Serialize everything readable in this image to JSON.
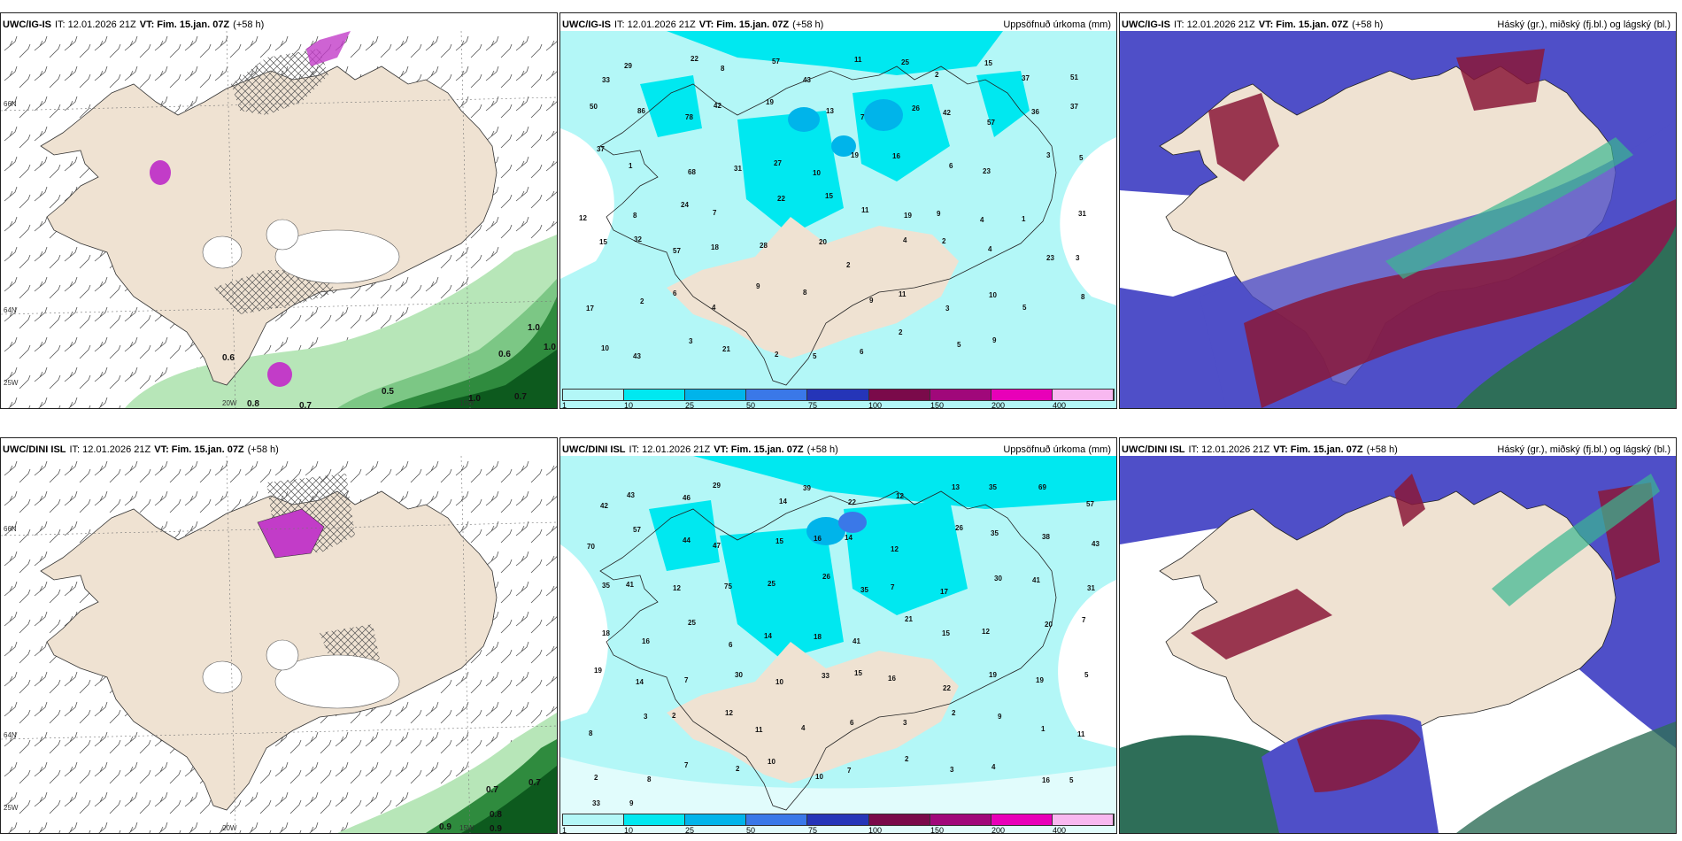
{
  "rows": [
    {
      "model": "UWC/IG-IS",
      "it": "IT: 12.01.2026 21Z",
      "vt_label": "VT:",
      "vt": "Fim. 15.jan. 07Z",
      "lead": "(+58 h)",
      "precip_title": "Uppsöfnuð úrkoma (mm)",
      "cloud_title": "Háský (gr.), miðský (fj.bl.) og lágský (bl.)",
      "wind_values": [
        "0.6",
        "0.8",
        "0.7",
        "0.5",
        "1.0",
        "0.7",
        "0.6",
        "1.0",
        "1.0"
      ],
      "precip_values": [
        "33",
        "29",
        "22",
        "8",
        "57",
        "43",
        "11",
        "25",
        "2",
        "15",
        "37",
        "51",
        "50",
        "86",
        "78",
        "42",
        "19",
        "13",
        "7",
        "26",
        "42",
        "57",
        "36",
        "37",
        "37",
        "1",
        "68",
        "31",
        "27",
        "10",
        "19",
        "16",
        "6",
        "23",
        "3",
        "5",
        "12",
        "8",
        "24",
        "7",
        "22",
        "15",
        "11",
        "19",
        "9",
        "4",
        "1",
        "31",
        "15",
        "32",
        "57",
        "18",
        "28",
        "20",
        "2",
        "4",
        "2",
        "4",
        "23",
        "3",
        "17",
        "2",
        "6",
        "4",
        "9",
        "8",
        "9",
        "11",
        "3",
        "10",
        "5",
        "8",
        "10",
        "43",
        "3",
        "21",
        "2",
        "5",
        "6",
        "2",
        "5",
        "9"
      ]
    },
    {
      "model": "UWC/DINI ISL",
      "it": "IT: 12.01.2026 21Z",
      "vt_label": "VT:",
      "vt": "Fim. 15.jan. 07Z",
      "lead": "(+58 h)",
      "precip_title": "Uppsöfnuð úrkoma (mm)",
      "cloud_title": "Háský (gr.), miðský (fj.bl.) og lágský (bl.)",
      "wind_values": [
        "0.7",
        "0.7",
        "0.8",
        "0.9",
        "0.9"
      ],
      "precip_values": [
        "42",
        "43",
        "46",
        "29",
        "14",
        "39",
        "22",
        "12",
        "13",
        "35",
        "69",
        "57",
        "70",
        "57",
        "44",
        "47",
        "15",
        "16",
        "14",
        "12",
        "26",
        "35",
        "38",
        "43",
        "35",
        "41",
        "12",
        "75",
        "25",
        "26",
        "35",
        "7",
        "17",
        "30",
        "41",
        "31",
        "18",
        "16",
        "25",
        "6",
        "14",
        "18",
        "41",
        "21",
        "15",
        "12",
        "20",
        "7",
        "19",
        "14",
        "7",
        "30",
        "10",
        "33",
        "15",
        "16",
        "22",
        "19",
        "19",
        "5",
        "8",
        "3",
        "2",
        "12",
        "11",
        "4",
        "6",
        "3",
        "2",
        "9",
        "1",
        "11",
        "2",
        "8",
        "7",
        "2",
        "10",
        "10",
        "7",
        "2",
        "3",
        "4",
        "16",
        "5",
        "33",
        "9"
      ]
    }
  ],
  "axis_labels": {
    "lon_20": "20W",
    "lon_15": "15W",
    "lon_25": "25W",
    "lat_66": "66N",
    "lat_64": "64N",
    "lat_66b": "66N"
  },
  "legend_ticks": [
    "1",
    "10",
    "25",
    "50",
    "75",
    "100",
    "150",
    "200",
    "400"
  ],
  "colors": {
    "land": "#efe2d2",
    "precip_light": "#b3f7f7",
    "precip_cyan": "#00e8f0",
    "precip_mid": "#00b4ea",
    "precip_blue": "#3a78e8",
    "precip_dark": "#2535b8",
    "precip_maroon": "#7a0a4a",
    "precip_purple": "#a0087a",
    "precip_magenta": "#e800b8",
    "precip_pink": "#f8b8f0",
    "cloud_high": "#4f4fc8",
    "cloud_mid": "#8a1838",
    "cloud_low": "#2e6e58",
    "wind_green": "#86cf8e",
    "wind_dark": "#0d5a1e",
    "snow_purple": "#c23cc8"
  }
}
